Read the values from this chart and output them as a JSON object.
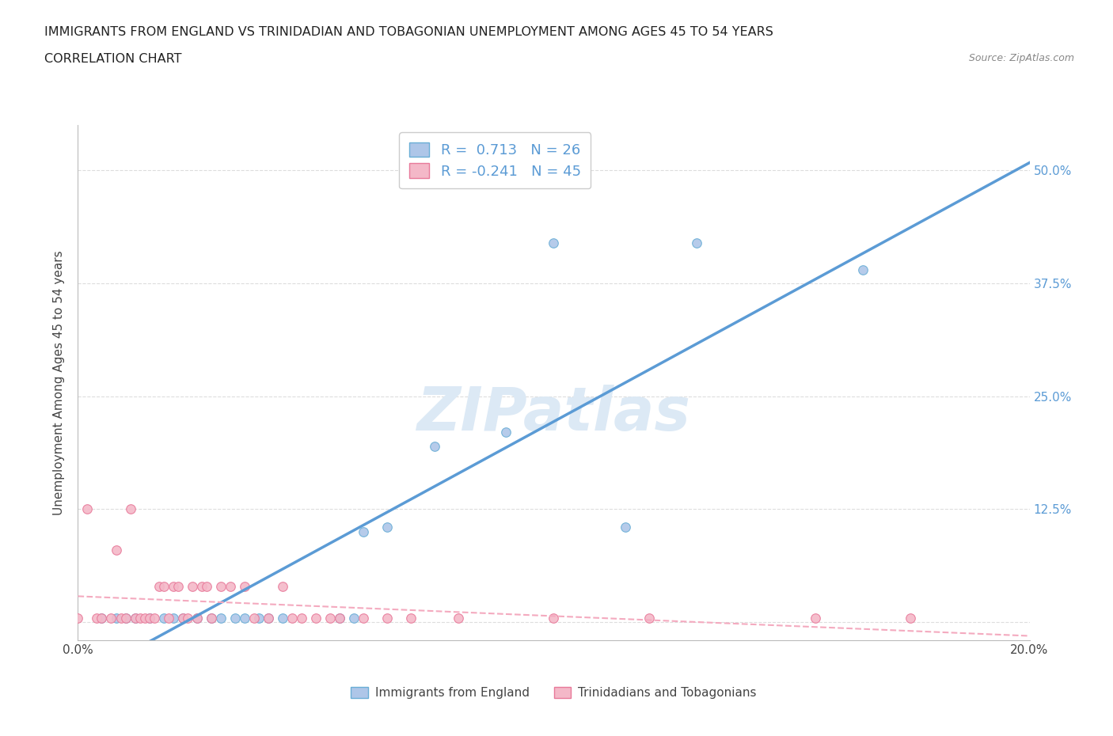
{
  "title_line1": "IMMIGRANTS FROM ENGLAND VS TRINIDADIAN AND TOBAGONIAN UNEMPLOYMENT AMONG AGES 45 TO 54 YEARS",
  "title_line2": "CORRELATION CHART",
  "source_text": "Source: ZipAtlas.com",
  "ylabel": "Unemployment Among Ages 45 to 54 years",
  "xlim": [
    0.0,
    0.2
  ],
  "ylim": [
    -0.02,
    0.55
  ],
  "yticks": [
    0.0,
    0.125,
    0.25,
    0.375,
    0.5
  ],
  "ytick_labels": [
    "",
    "12.5%",
    "25.0%",
    "37.5%",
    "50.0%"
  ],
  "xticks": [
    0.0,
    0.05,
    0.1,
    0.15,
    0.2
  ],
  "xtick_labels": [
    "0.0%",
    "",
    "",
    "",
    "20.0%"
  ],
  "england_r": 0.713,
  "england_n": 26,
  "trini_r": -0.241,
  "trini_n": 45,
  "england_color": "#aec6e8",
  "england_edge_color": "#6aaed6",
  "trini_color": "#f4b8c8",
  "trini_edge_color": "#e87a9a",
  "england_line_color": "#5b9bd5",
  "trini_line_color": "#f4aabf",
  "watermark_color": "#dce9f5",
  "england_scatter_x": [
    0.005,
    0.008,
    0.01,
    0.012,
    0.015,
    0.018,
    0.02,
    0.022,
    0.025,
    0.028,
    0.03,
    0.033,
    0.035,
    0.038,
    0.04,
    0.043,
    0.055,
    0.058,
    0.06,
    0.065,
    0.075,
    0.09,
    0.1,
    0.115,
    0.13,
    0.165
  ],
  "england_scatter_y": [
    0.005,
    0.005,
    0.005,
    0.005,
    0.005,
    0.005,
    0.005,
    0.005,
    0.005,
    0.005,
    0.005,
    0.005,
    0.005,
    0.005,
    0.005,
    0.005,
    0.005,
    0.005,
    0.1,
    0.105,
    0.195,
    0.21,
    0.42,
    0.105,
    0.42,
    0.39
  ],
  "trini_scatter_x": [
    0.0,
    0.002,
    0.004,
    0.005,
    0.007,
    0.008,
    0.009,
    0.01,
    0.011,
    0.012,
    0.013,
    0.014,
    0.015,
    0.016,
    0.017,
    0.018,
    0.019,
    0.02,
    0.021,
    0.022,
    0.023,
    0.024,
    0.025,
    0.026,
    0.027,
    0.028,
    0.03,
    0.032,
    0.035,
    0.037,
    0.04,
    0.043,
    0.045,
    0.047,
    0.05,
    0.053,
    0.055,
    0.06,
    0.065,
    0.07,
    0.08,
    0.1,
    0.12,
    0.155,
    0.175
  ],
  "trini_scatter_y": [
    0.005,
    0.125,
    0.005,
    0.005,
    0.005,
    0.08,
    0.005,
    0.005,
    0.125,
    0.005,
    0.005,
    0.005,
    0.005,
    0.005,
    0.04,
    0.04,
    0.005,
    0.04,
    0.04,
    0.005,
    0.005,
    0.04,
    0.005,
    0.04,
    0.04,
    0.005,
    0.04,
    0.04,
    0.04,
    0.005,
    0.005,
    0.04,
    0.005,
    0.005,
    0.005,
    0.005,
    0.005,
    0.005,
    0.005,
    0.005,
    0.005,
    0.005,
    0.005,
    0.005,
    0.005
  ],
  "legend_label1": "Immigrants from England",
  "legend_label2": "Trinidadians and Tobagonians",
  "background_color": "#ffffff",
  "grid_color": "#dddddd"
}
